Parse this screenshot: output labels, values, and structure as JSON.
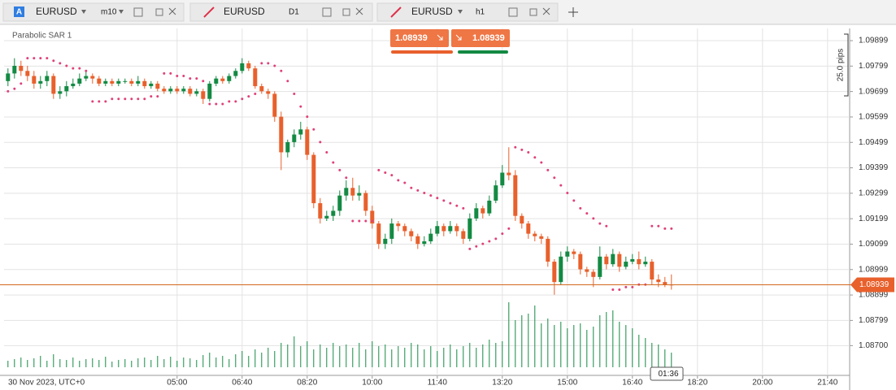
{
  "tabs": [
    {
      "badge": "A",
      "symbol": "EURUSD",
      "timeframe": "m10"
    },
    {
      "symbol": "EURUSD",
      "timeframe": "D1"
    },
    {
      "symbol": "EURUSD",
      "timeframe": "h1"
    }
  ],
  "trade_buttons": {
    "sell": "1.08939",
    "buy": "1.08939"
  },
  "chart_data": {
    "type": "candlestick",
    "indicator": "Parabolic SAR 1",
    "date_label": "30 Nov 2023, UTC+0",
    "up_color": "#138a43",
    "down_color": "#e8602c",
    "sar_color": "#e0407a",
    "volume_color": "#138a43",
    "grid": true,
    "xlim": [
      -0.6,
      129.4
    ],
    "xticks": [
      {
        "value": 26,
        "label": "05:00"
      },
      {
        "value": 36,
        "label": "06:40"
      },
      {
        "value": 46,
        "label": "08:20"
      },
      {
        "value": 56,
        "label": "10:00"
      },
      {
        "value": 66,
        "label": "11:40"
      },
      {
        "value": 76,
        "label": "13:20"
      },
      {
        "value": 86,
        "label": "15:00"
      },
      {
        "value": 96,
        "label": "16:40"
      },
      {
        "value": 106,
        "label": "18:20"
      },
      {
        "value": 116,
        "label": "20:00"
      },
      {
        "value": 126,
        "label": "21:40"
      }
    ],
    "ylim": [
      1.08583,
      1.09947
    ],
    "yticks": [
      1.09899,
      1.09799,
      1.09699,
      1.09599,
      1.09499,
      1.09399,
      1.09299,
      1.09199,
      1.09099,
      1.08999,
      1.08899,
      1.08799,
      {
        "value": 1.087,
        "label": "1.08700"
      }
    ],
    "current_price": 1.08939,
    "pips_label": "25.0 pips",
    "countdown": "01:36",
    "ohlc": [
      [
        1.0974,
        1.0979,
        1.0972,
        1.0977
      ],
      [
        1.0977,
        1.0983,
        1.0975,
        1.098
      ],
      [
        1.098,
        1.0982,
        1.0976,
        1.0978
      ],
      [
        1.0978,
        1.098,
        1.0974,
        1.0976
      ],
      [
        1.0976,
        1.0978,
        1.0971,
        1.0973
      ],
      [
        1.0973,
        1.0976,
        1.0971,
        1.0974
      ],
      [
        1.0974,
        1.0978,
        1.0972,
        1.0976
      ],
      [
        1.0976,
        1.0977,
        1.0967,
        1.0969
      ],
      [
        1.0969,
        1.0972,
        1.0967,
        1.097
      ],
      [
        1.097,
        1.0974,
        1.0968,
        1.0972
      ],
      [
        1.0972,
        1.0975,
        1.0971,
        1.0973
      ],
      [
        1.0973,
        1.0977,
        1.0972,
        1.0975
      ],
      [
        1.0975,
        1.0978,
        1.0974,
        1.0976
      ],
      [
        1.0976,
        1.0977,
        1.0973,
        1.0975
      ],
      [
        1.0975,
        1.0976,
        1.0972,
        1.0973
      ],
      [
        1.0973,
        1.0975,
        1.0972,
        1.0974
      ],
      [
        1.0974,
        1.0975,
        1.0972,
        1.0973
      ],
      [
        1.0973,
        1.0975,
        1.0972,
        1.0974
      ],
      [
        1.0974,
        1.0975,
        1.0973,
        1.0974
      ],
      [
        1.0974,
        1.0975,
        1.0972,
        1.0973
      ],
      [
        1.0973,
        1.0976,
        1.0972,
        1.0974
      ],
      [
        1.0974,
        1.0975,
        1.0971,
        1.0972
      ],
      [
        1.0972,
        1.0974,
        1.0971,
        1.0973
      ],
      [
        1.0973,
        1.0974,
        1.097,
        1.0971
      ],
      [
        1.0971,
        1.0972,
        1.0969,
        1.097
      ],
      [
        1.097,
        1.0972,
        1.0969,
        1.0971
      ],
      [
        1.0971,
        1.0972,
        1.0969,
        1.097
      ],
      [
        1.097,
        1.0972,
        1.0969,
        1.0971
      ],
      [
        1.0971,
        1.0972,
        1.0968,
        1.0969
      ],
      [
        1.0969,
        1.0971,
        1.0968,
        1.097
      ],
      [
        1.097,
        1.0971,
        1.0965,
        1.0967
      ],
      [
        1.0967,
        1.0974,
        1.0966,
        1.0973
      ],
      [
        1.0973,
        1.0976,
        1.0972,
        1.0975
      ],
      [
        1.0975,
        1.0976,
        1.0973,
        1.0974
      ],
      [
        1.0974,
        1.0977,
        1.0973,
        1.0976
      ],
      [
        1.0976,
        1.0979,
        1.0975,
        1.0978
      ],
      [
        1.0978,
        1.0983,
        1.0977,
        1.0981
      ],
      [
        1.0981,
        1.0982,
        1.0978,
        1.0979
      ],
      [
        1.0979,
        1.098,
        1.0971,
        1.0972
      ],
      [
        1.0972,
        1.0973,
        1.0969,
        1.097
      ],
      [
        1.097,
        1.0971,
        1.0967,
        1.0969
      ],
      [
        1.0969,
        1.097,
        1.0958,
        1.096
      ],
      [
        1.096,
        1.0962,
        1.0939,
        1.0946
      ],
      [
        1.0946,
        1.0951,
        1.0944,
        1.095
      ],
      [
        1.095,
        1.0955,
        1.0948,
        1.0953
      ],
      [
        1.0953,
        1.0958,
        1.0951,
        1.0955
      ],
      [
        1.0955,
        1.0956,
        1.0943,
        1.0945
      ],
      [
        1.0945,
        1.0946,
        1.0924,
        1.0926
      ],
      [
        1.0926,
        1.0928,
        1.0918,
        1.092
      ],
      [
        1.092,
        1.0923,
        1.0919,
        1.0921
      ],
      [
        1.0921,
        1.0925,
        1.0919,
        1.0923
      ],
      [
        1.0923,
        1.0931,
        1.0921,
        1.0929
      ],
      [
        1.0929,
        1.0935,
        1.0927,
        1.0932
      ],
      [
        1.0932,
        1.0936,
        1.0927,
        1.0929
      ],
      [
        1.0929,
        1.0933,
        1.0927,
        1.093
      ],
      [
        1.093,
        1.0931,
        1.0921,
        1.0923
      ],
      [
        1.0923,
        1.0925,
        1.0916,
        1.0918
      ],
      [
        1.0918,
        1.0919,
        1.0908,
        1.091
      ],
      [
        1.091,
        1.0914,
        1.0908,
        1.0912
      ],
      [
        1.0912,
        1.092,
        1.091,
        1.0918
      ],
      [
        1.0918,
        1.0919,
        1.0915,
        1.0917
      ],
      [
        1.0917,
        1.0918,
        1.0913,
        1.0915
      ],
      [
        1.0915,
        1.0916,
        1.0911,
        1.0913
      ],
      [
        1.0913,
        1.0914,
        1.0908,
        1.091
      ],
      [
        1.091,
        1.0913,
        1.0909,
        1.0911
      ],
      [
        1.0911,
        1.0916,
        1.091,
        1.0914
      ],
      [
        1.0914,
        1.0919,
        1.0913,
        1.0917
      ],
      [
        1.0917,
        1.0918,
        1.0913,
        1.0915
      ],
      [
        1.0915,
        1.0919,
        1.0914,
        1.0917
      ],
      [
        1.0917,
        1.0918,
        1.0913,
        1.0915
      ],
      [
        1.0915,
        1.0916,
        1.091,
        1.0912
      ],
      [
        1.0912,
        1.0922,
        1.0911,
        1.092
      ],
      [
        1.092,
        1.0926,
        1.0919,
        1.0924
      ],
      [
        1.0924,
        1.0925,
        1.092,
        1.0922
      ],
      [
        1.0922,
        1.0929,
        1.0921,
        1.0927
      ],
      [
        1.0927,
        1.0935,
        1.0926,
        1.0933
      ],
      [
        1.0933,
        1.0941,
        1.0932,
        1.0938
      ],
      [
        1.0938,
        1.0948,
        1.0935,
        1.0937
      ],
      [
        1.0937,
        1.0939,
        1.0919,
        1.0921
      ],
      [
        1.0921,
        1.0922,
        1.0916,
        1.0918
      ],
      [
        1.0918,
        1.0919,
        1.0912,
        1.0914
      ],
      [
        1.0914,
        1.0915,
        1.0911,
        1.0913
      ],
      [
        1.0913,
        1.0914,
        1.091,
        1.0912
      ],
      [
        1.0912,
        1.0913,
        1.0901,
        1.0903
      ],
      [
        1.0903,
        1.0904,
        1.089,
        1.0895
      ],
      [
        1.0895,
        1.0907,
        1.0894,
        1.0905
      ],
      [
        1.0905,
        1.0909,
        1.0903,
        1.0907
      ],
      [
        1.0907,
        1.0908,
        1.0904,
        1.0906
      ],
      [
        1.0906,
        1.0907,
        1.0898,
        1.09
      ],
      [
        1.09,
        1.0901,
        1.0897,
        1.0899
      ],
      [
        1.0899,
        1.09,
        1.0893,
        1.0897
      ],
      [
        1.0897,
        1.0909,
        1.0896,
        1.0905
      ],
      [
        1.0905,
        1.0906,
        1.09,
        1.0902
      ],
      [
        1.0902,
        1.0908,
        1.0901,
        1.0906
      ],
      [
        1.0906,
        1.0907,
        1.0899,
        1.0901
      ],
      [
        1.0901,
        1.0905,
        1.09,
        1.0903
      ],
      [
        1.0903,
        1.0906,
        1.0902,
        1.0904
      ],
      [
        1.0904,
        1.0907,
        1.09,
        1.0902
      ],
      [
        1.0902,
        1.0905,
        1.0901,
        1.0903
      ],
      [
        1.0903,
        1.0904,
        1.0894,
        1.0896
      ],
      [
        1.0896,
        1.0898,
        1.0893,
        1.0895
      ],
      [
        1.0895,
        1.0897,
        1.0893,
        1.0894
      ],
      [
        1.0894,
        1.0898,
        1.0892,
        1.08939
      ]
    ],
    "sar": [
      1.097,
      1.0971,
      1.0973,
      1.0983,
      1.0983,
      1.0983,
      1.0983,
      1.0982,
      1.0981,
      1.098,
      1.0979,
      1.0979,
      1.0978,
      1.0966,
      1.0966,
      1.0966,
      1.0967,
      1.0967,
      1.0967,
      1.0967,
      1.0967,
      1.0967,
      1.0968,
      1.0968,
      1.0977,
      1.0977,
      1.0976,
      1.0976,
      1.0975,
      1.0975,
      1.0974,
      1.0965,
      1.0965,
      1.0965,
      1.0966,
      1.0966,
      1.0967,
      1.0968,
      1.0969,
      1.0981,
      1.0981,
      1.098,
      1.0978,
      1.0974,
      1.0969,
      1.0964,
      1.096,
      1.0955,
      1.095,
      1.0946,
      1.0942,
      1.0939,
      1.0936,
      1.0919,
      1.0919,
      1.0919,
      1.0919,
      1.0939,
      1.0938,
      1.0937,
      1.0935,
      1.0934,
      1.0932,
      1.0931,
      1.093,
      1.0929,
      1.0928,
      1.0927,
      1.0926,
      1.0925,
      1.0924,
      1.0908,
      1.0909,
      1.091,
      1.0911,
      1.0912,
      1.0914,
      1.0916,
      1.0948,
      1.0947,
      1.0946,
      1.0944,
      1.0942,
      1.0939,
      1.0936,
      1.0933,
      1.093,
      1.0927,
      1.0924,
      1.0922,
      1.092,
      1.0918,
      1.0917,
      1.0892,
      1.0892,
      1.0893,
      1.0893,
      1.0894,
      1.0894,
      1.0917,
      1.0917,
      1.0916,
      1.0916
    ],
    "volume": [
      8,
      10,
      12,
      9,
      11,
      14,
      8,
      16,
      10,
      9,
      12,
      8,
      10,
      11,
      9,
      13,
      7,
      9,
      10,
      8,
      11,
      12,
      9,
      14,
      10,
      13,
      8,
      12,
      11,
      9,
      15,
      18,
      12,
      14,
      10,
      16,
      20,
      14,
      22,
      18,
      24,
      20,
      30,
      28,
      38,
      26,
      32,
      22,
      28,
      24,
      30,
      26,
      28,
      24,
      30,
      22,
      32,
      26,
      28,
      22,
      26,
      24,
      30,
      28,
      22,
      26,
      20,
      24,
      28,
      22,
      26,
      30,
      24,
      28,
      34,
      30,
      32,
      80,
      58,
      64,
      66,
      76,
      54,
      60,
      52,
      56,
      48,
      52,
      54,
      46,
      50,
      64,
      68,
      70,
      56,
      52,
      48,
      40,
      36,
      30,
      28,
      22,
      18
    ]
  }
}
